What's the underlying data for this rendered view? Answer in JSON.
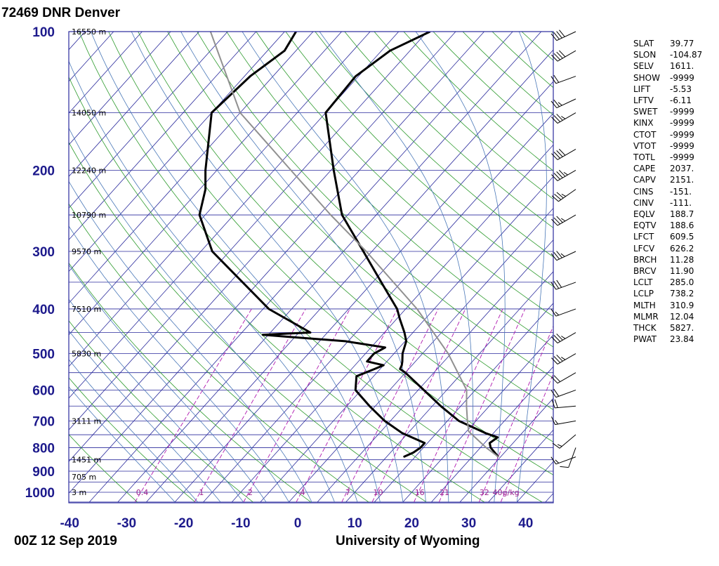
{
  "header": {
    "station": "72469 DNR Denver"
  },
  "footer": {
    "date": "00Z 12 Sep 2019",
    "credit": "University of Wyoming"
  },
  "indices": [
    {
      "name": "SLAT",
      "value": "39.77"
    },
    {
      "name": "SLON",
      "value": "-104.87"
    },
    {
      "name": "SELV",
      "value": "1611."
    },
    {
      "name": "SHOW",
      "value": "-9999"
    },
    {
      "name": "LIFT",
      "value": "-5.53"
    },
    {
      "name": "LFTV",
      "value": "-6.11"
    },
    {
      "name": "SWET",
      "value": "-9999"
    },
    {
      "name": "KINX",
      "value": "-9999"
    },
    {
      "name": "CTOT",
      "value": "-9999"
    },
    {
      "name": "VTOT",
      "value": "-9999"
    },
    {
      "name": "TOTL",
      "value": "-9999"
    },
    {
      "name": "CAPE",
      "value": "2037."
    },
    {
      "name": "CAPV",
      "value": "2151."
    },
    {
      "name": "CINS",
      "value": "-151."
    },
    {
      "name": "CINV",
      "value": "-111."
    },
    {
      "name": "EQLV",
      "value": "188.7"
    },
    {
      "name": "EQTV",
      "value": "188.6"
    },
    {
      "name": "LFCT",
      "value": "609.5"
    },
    {
      "name": "LFCV",
      "value": "626.2"
    },
    {
      "name": "BRCH",
      "value": "11.28"
    },
    {
      "name": "BRCV",
      "value": "11.90"
    },
    {
      "name": "LCLT",
      "value": "285.0"
    },
    {
      "name": "LCLP",
      "value": "738.2"
    },
    {
      "name": "MLTH",
      "value": "310.9"
    },
    {
      "name": "MLMR",
      "value": "12.04"
    },
    {
      "name": "THCK",
      "value": "5827."
    },
    {
      "name": "PWAT",
      "value": "23.84"
    }
  ],
  "chart_data": {
    "type": "line",
    "subtype": "skew-T log-p sounding",
    "xlim": [
      -40,
      45
    ],
    "ylim": [
      1000,
      100
    ],
    "y_scale": "log",
    "x_ticks": [
      -40,
      -30,
      -20,
      -10,
      0,
      10,
      20,
      30,
      40
    ],
    "x_tick_labels": [
      "-40",
      "-30",
      "-20",
      "-10",
      "0",
      "10",
      "20",
      "30",
      "40"
    ],
    "p_ticks": [
      1000,
      900,
      800,
      700,
      600,
      500,
      400,
      300,
      200,
      100
    ],
    "p_tick_labels": [
      "1000",
      "900",
      "800",
      "700",
      "600",
      "500",
      "400",
      "300",
      "200",
      "100"
    ],
    "height_labels": [
      {
        "p": 100,
        "label": "16550 m"
      },
      {
        "p": 150,
        "label": "14050 m"
      },
      {
        "p": 200,
        "label": "12240 m"
      },
      {
        "p": 250,
        "label": "10790 m"
      },
      {
        "p": 300,
        "label": "9570 m"
      },
      {
        "p": 400,
        "label": "7510 m"
      },
      {
        "p": 500,
        "label": "5830 m"
      },
      {
        "p": 700,
        "label": "3111 m"
      },
      {
        "p": 850,
        "label": "1451 m"
      },
      {
        "p": 925,
        "label": "705 m"
      },
      {
        "p": 1000,
        "label": "3 m"
      }
    ],
    "mixing_ratio_labels": [
      "0.4",
      "1",
      "2",
      "4",
      "7",
      "10",
      "16",
      "21",
      "32",
      "40g/kg"
    ],
    "mixing_ratio_values": [
      0.4,
      1,
      2,
      4,
      7,
      10,
      16,
      21,
      32,
      40
    ],
    "series": [
      {
        "name": "temperature",
        "color": "#000000",
        "points": [
          [
            838,
            29.6
          ],
          [
            800,
            26.8
          ],
          [
            782,
            25.9
          ],
          [
            760,
            26.4
          ],
          [
            744,
            23.6
          ],
          [
            700,
            17.0
          ],
          [
            650,
            11.5
          ],
          [
            600,
            6.0
          ],
          [
            550,
            0.0
          ],
          [
            540,
            -1.5
          ],
          [
            530,
            -1.8
          ],
          [
            520,
            -2.3
          ],
          [
            500,
            -3.5
          ],
          [
            470,
            -4.8
          ],
          [
            450,
            -6.5
          ],
          [
            420,
            -9.5
          ],
          [
            400,
            -11.5
          ],
          [
            350,
            -18.5
          ],
          [
            300,
            -26.5
          ],
          [
            250,
            -36.0
          ],
          [
            200,
            -44.5
          ],
          [
            150,
            -55.0
          ],
          [
            125,
            -55.5
          ],
          [
            110,
            -53.5
          ],
          [
            100,
            -49.5
          ]
        ]
      },
      {
        "name": "dewpoint",
        "color": "#000000",
        "points": [
          [
            838,
            13.0
          ],
          [
            820,
            14.0
          ],
          [
            800,
            14.5
          ],
          [
            782,
            14.5
          ],
          [
            744,
            9.0
          ],
          [
            700,
            4.0
          ],
          [
            650,
            -1.0
          ],
          [
            600,
            -6.0
          ],
          [
            560,
            -8.0
          ],
          [
            540,
            -6.0
          ],
          [
            530,
            -5.0
          ],
          [
            520,
            -8.5
          ],
          [
            500,
            -8.5
          ],
          [
            485,
            -7.5
          ],
          [
            470,
            -15.5
          ],
          [
            460,
            -26.0
          ],
          [
            455,
            -31.0
          ],
          [
            450,
            -23.0
          ],
          [
            400,
            -34.0
          ],
          [
            300,
            -53.0
          ],
          [
            250,
            -61.0
          ],
          [
            220,
            -64.0
          ],
          [
            200,
            -67.0
          ],
          [
            150,
            -75.0
          ],
          [
            125,
            -74.0
          ],
          [
            110,
            -72.0
          ],
          [
            100,
            -73.0
          ]
        ]
      },
      {
        "name": "parcel",
        "color": "#909090",
        "points": [
          [
            838,
            29.6
          ],
          [
            800,
            26.0
          ],
          [
            738,
            20.4
          ],
          [
            700,
            18.5
          ],
          [
            650,
            16.0
          ],
          [
            600,
            13.5
          ],
          [
            500,
            4.5
          ],
          [
            400,
            -8.0
          ],
          [
            300,
            -26.0
          ],
          [
            250,
            -38.0
          ],
          [
            200,
            -52.0
          ],
          [
            150,
            -70.0
          ],
          [
            100,
            -88.0
          ]
        ]
      }
    ],
    "wind_barbs": [
      {
        "p": 838,
        "dir": 250,
        "kt": 15
      },
      {
        "p": 800,
        "dir": 200,
        "kt": 10
      },
      {
        "p": 750,
        "dir": 230,
        "kt": 15
      },
      {
        "p": 700,
        "dir": 260,
        "kt": 15
      },
      {
        "p": 650,
        "dir": 265,
        "kt": 20
      },
      {
        "p": 600,
        "dir": 250,
        "kt": 20
      },
      {
        "p": 550,
        "dir": 240,
        "kt": 20
      },
      {
        "p": 500,
        "dir": 240,
        "kt": 35
      },
      {
        "p": 450,
        "dir": 240,
        "kt": 35
      },
      {
        "p": 400,
        "dir": 250,
        "kt": 15
      },
      {
        "p": 350,
        "dir": 250,
        "kt": 30
      },
      {
        "p": 300,
        "dir": 245,
        "kt": 35
      },
      {
        "p": 250,
        "dir": 240,
        "kt": 35
      },
      {
        "p": 220,
        "dir": 235,
        "kt": 35
      },
      {
        "p": 200,
        "dir": 240,
        "kt": 45
      },
      {
        "p": 180,
        "dir": 240,
        "kt": 40
      },
      {
        "p": 150,
        "dir": 240,
        "kt": 35
      },
      {
        "p": 140,
        "dir": 245,
        "kt": 25
      },
      {
        "p": 125,
        "dir": 250,
        "kt": 20
      },
      {
        "p": 110,
        "dir": 240,
        "kt": 40
      },
      {
        "p": 100,
        "dir": 245,
        "kt": 40
      }
    ],
    "colors": {
      "isobar": "#2a2a9c",
      "isotherm": "#2a2a9c",
      "dry_adiabat": "#2e9b2e",
      "moist_adiabat": "#4a78b8",
      "mixing_ratio": "#b01ab0",
      "axis_label": "#1d1a8c"
    },
    "grid": true
  }
}
